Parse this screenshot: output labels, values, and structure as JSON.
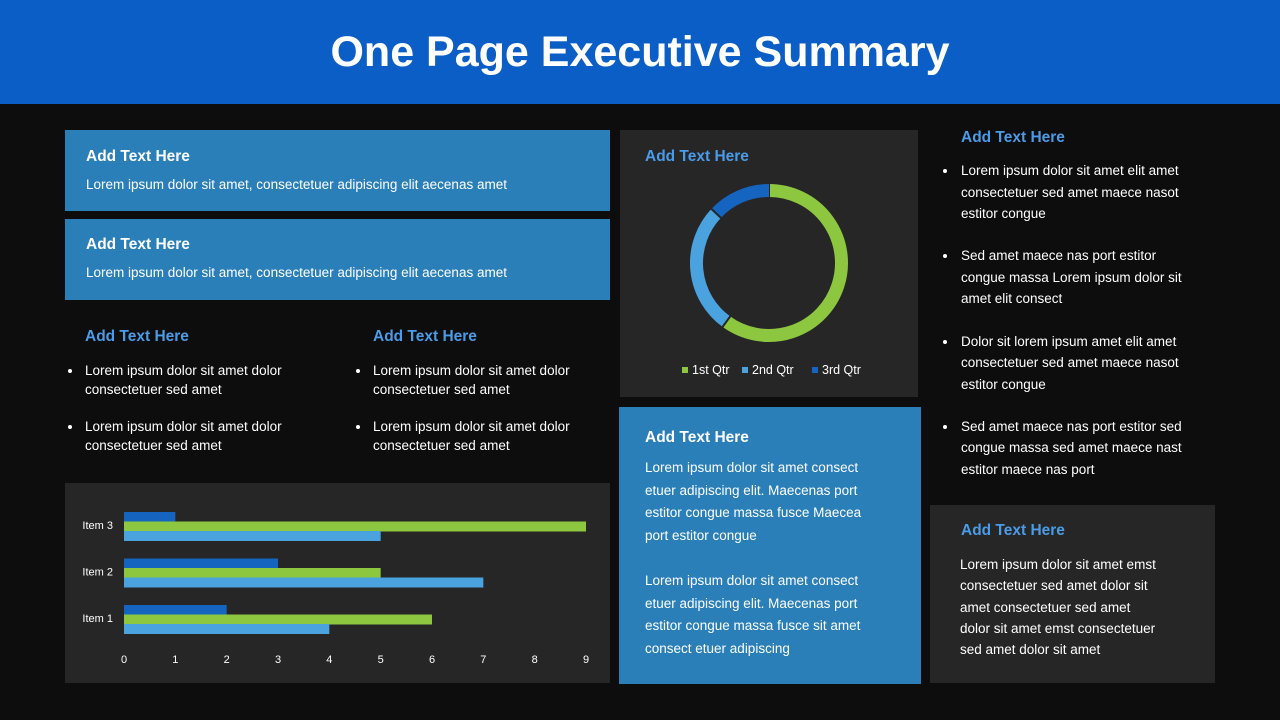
{
  "header": {
    "title": "One Page Executive Summary"
  },
  "cards": [
    {
      "heading": "Add Text Here",
      "text": "Lorem ipsum dolor sit amet, consectetuer adipiscing elit aecenas amet"
    },
    {
      "heading": "Add Text Here",
      "text": "Lorem ipsum dolor sit amet, consectetuer adipiscing elit aecenas amet"
    }
  ],
  "columns": [
    {
      "heading": "Add Text Here",
      "bullets": [
        [
          "Lorem ipsum dolor sit amet dolor",
          "consectetuer sed amet"
        ],
        [
          "Lorem ipsum dolor sit amet dolor",
          "consectetuer sed amet"
        ]
      ]
    },
    {
      "heading": "Add Text Here",
      "bullets": [
        [
          "Lorem ipsum dolor sit amet dolor",
          "consectetuer sed amet"
        ],
        [
          "Lorem ipsum dolor sit amet dolor",
          "consectetuer sed amet"
        ]
      ]
    }
  ],
  "center_box": {
    "heading": "Add Text Here",
    "paragraphs": [
      [
        "Lorem ipsum dolor sit amet consect",
        "etuer adipiscing elit. Maecenas port",
        "estitor congue massa fusce Maecea",
        "port estitor congue"
      ],
      [
        "Lorem ipsum dolor sit amet consect",
        "etuer adipiscing elit. Maecenas port",
        "estitor congue massa fusce sit amet",
        "consect etuer adipiscing"
      ]
    ]
  },
  "right_list": {
    "heading": "Add Text Here",
    "bullets": [
      [
        "Lorem ipsum dolor sit amet elit amet",
        "consectetuer sed amet maece nasot",
        "estitor congue"
      ],
      [
        "Sed amet maece nas port estitor",
        "congue massa Lorem ipsum dolor sit",
        "amet elit consect"
      ],
      [
        "Dolor sit lorem ipsum amet elit amet",
        "consectetuer sed amet maece nasot",
        "estitor congue"
      ],
      [
        "Sed amet maece nas port estitor sed",
        "congue massa sed amet maece nast",
        "estitor maece nas port"
      ]
    ]
  },
  "right_panel": {
    "heading": "Add Text Here",
    "lines": [
      "Lorem ipsum dolor sit amet emst",
      "consectetuer sed amet dolor sit",
      "amet consectetuer sed amet",
      "dolor sit amet emst consectetuer",
      "sed amet dolor sit amet"
    ]
  },
  "chart_data": [
    {
      "type": "donut",
      "title": "Add Text Here",
      "categories": [
        "1st Qtr",
        "2nd Qtr",
        "3rd Qtr"
      ],
      "values": [
        60,
        27,
        13
      ],
      "colors": [
        "#8dc63f",
        "#4aa3df",
        "#1565c0"
      ],
      "legend": "bottom"
    },
    {
      "type": "bar",
      "orientation": "horizontal",
      "categories": [
        "Item 1",
        "Item 2",
        "Item 3"
      ],
      "series": [
        {
          "color": "#1565c0",
          "values": [
            2,
            3,
            1
          ]
        },
        {
          "color": "#8dc63f",
          "values": [
            6,
            5,
            9
          ]
        },
        {
          "color": "#4aa3df",
          "values": [
            4,
            7,
            5
          ]
        }
      ],
      "xlim": [
        0,
        9
      ],
      "xticks": [
        0,
        1,
        2,
        3,
        4,
        5,
        6,
        7,
        8,
        9
      ],
      "grid": false
    }
  ]
}
